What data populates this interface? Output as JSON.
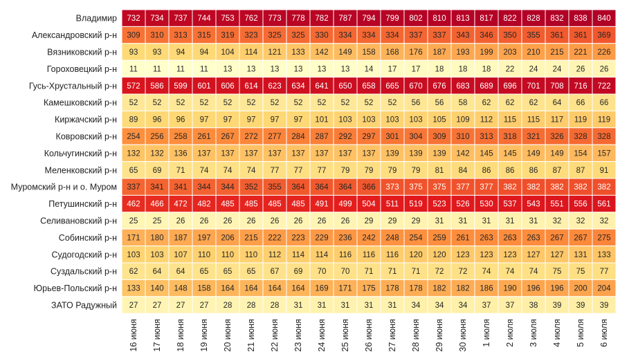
{
  "chart_data": {
    "type": "heatmap",
    "title": "",
    "xlabel": "",
    "ylabel": "",
    "x": [
      "16 июня",
      "17 июня",
      "18 июня",
      "19 июня",
      "20 июня",
      "21 июня",
      "22 июня",
      "23 июня",
      "24 июня",
      "25 июня",
      "26 июня",
      "27 июня",
      "28 июня",
      "29 июня",
      "30 июня",
      "1 июля",
      "2 июля",
      "3 июля",
      "4 июля",
      "5 июля",
      "6 июля"
    ],
    "y": [
      "Владимир",
      "Александровский р-н",
      "Вязниковский р-н",
      "Гороховецкий р-н",
      "Гусь-Хрустальный р-н",
      "Камешковский р-н",
      "Киржачский р-н",
      "Ковровский р-н",
      "Кольчугинский р-н",
      "Меленковский р-н",
      "Муромский р-н и о. Муром",
      "Петушинский р-н",
      "Селивановский р-н",
      "Собинский р-н",
      "Судогодский р-н",
      "Суздальский р-н",
      "Юрьев-Польский р-н",
      "ЗАТО Радужный"
    ],
    "values": [
      [
        732,
        734,
        737,
        744,
        753,
        762,
        773,
        778,
        782,
        787,
        794,
        799,
        802,
        810,
        813,
        817,
        822,
        828,
        832,
        838,
        840
      ],
      [
        309,
        310,
        313,
        315,
        319,
        323,
        325,
        325,
        330,
        334,
        334,
        334,
        337,
        337,
        343,
        346,
        350,
        355,
        361,
        361,
        369
      ],
      [
        93,
        93,
        94,
        94,
        104,
        114,
        121,
        133,
        142,
        149,
        158,
        168,
        176,
        187,
        193,
        199,
        203,
        210,
        215,
        221,
        226
      ],
      [
        11,
        11,
        11,
        11,
        13,
        13,
        13,
        13,
        13,
        13,
        14,
        17,
        17,
        18,
        18,
        18,
        22,
        24,
        24,
        26,
        26
      ],
      [
        572,
        586,
        599,
        601,
        606,
        614,
        623,
        634,
        641,
        650,
        658,
        665,
        670,
        676,
        683,
        689,
        696,
        701,
        708,
        716,
        722
      ],
      [
        52,
        52,
        52,
        52,
        52,
        52,
        52,
        52,
        52,
        52,
        52,
        52,
        56,
        56,
        58,
        62,
        62,
        62,
        64,
        66,
        66
      ],
      [
        89,
        96,
        96,
        97,
        97,
        97,
        97,
        97,
        101,
        103,
        103,
        103,
        103,
        105,
        109,
        112,
        115,
        115,
        117,
        119,
        119
      ],
      [
        254,
        256,
        258,
        261,
        267,
        272,
        277,
        284,
        287,
        292,
        297,
        301,
        304,
        309,
        310,
        313,
        318,
        321,
        326,
        328,
        328
      ],
      [
        132,
        132,
        136,
        137,
        137,
        137,
        137,
        137,
        137,
        137,
        137,
        139,
        139,
        139,
        142,
        145,
        145,
        149,
        149,
        154,
        157
      ],
      [
        65,
        69,
        71,
        74,
        74,
        74,
        77,
        77,
        77,
        79,
        79,
        79,
        79,
        81,
        84,
        86,
        86,
        86,
        87,
        87,
        91
      ],
      [
        337,
        341,
        341,
        344,
        344,
        352,
        355,
        364,
        364,
        364,
        366,
        373,
        375,
        375,
        377,
        377,
        382,
        382,
        382,
        382,
        382
      ],
      [
        462,
        466,
        472,
        482,
        485,
        485,
        485,
        485,
        491,
        499,
        504,
        511,
        519,
        523,
        526,
        530,
        537,
        543,
        551,
        556,
        561
      ],
      [
        25,
        25,
        26,
        26,
        26,
        26,
        26,
        26,
        26,
        26,
        29,
        29,
        29,
        31,
        31,
        31,
        31,
        31,
        32,
        32,
        32
      ],
      [
        171,
        180,
        187,
        197,
        206,
        215,
        222,
        223,
        229,
        236,
        242,
        248,
        254,
        259,
        261,
        263,
        263,
        263,
        267,
        267,
        275
      ],
      [
        103,
        103,
        107,
        110,
        110,
        110,
        112,
        114,
        114,
        116,
        116,
        116,
        120,
        120,
        123,
        123,
        123,
        127,
        127,
        131,
        133
      ],
      [
        62,
        64,
        64,
        65,
        65,
        65,
        67,
        69,
        70,
        70,
        71,
        71,
        71,
        72,
        72,
        74,
        74,
        74,
        75,
        75,
        77
      ],
      [
        133,
        140,
        148,
        158,
        164,
        164,
        164,
        164,
        169,
        171,
        175,
        178,
        178,
        182,
        182,
        186,
        190,
        196,
        196,
        200,
        204
      ],
      [
        27,
        27,
        27,
        27,
        28,
        28,
        28,
        31,
        31,
        31,
        31,
        31,
        34,
        34,
        34,
        37,
        37,
        38,
        39,
        39,
        39
      ]
    ],
    "color_scale": [
      "#ffffcc",
      "#fed976",
      "#fd8d3c",
      "#e31a1c",
      "#b10026"
    ],
    "grid": false,
    "legend": false
  }
}
